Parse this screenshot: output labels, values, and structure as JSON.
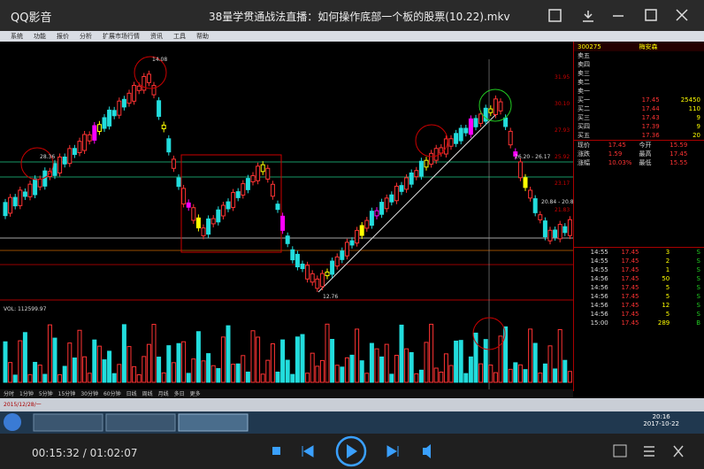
{
  "player": {
    "app": "QQ影音",
    "title": "38量学贯通战法直播：如何操作底部一个板的股票(10.22).mkv",
    "time": "00:15:32 / 01:02:07"
  },
  "software": {
    "menu": [
      "系统",
      "功能",
      "报价",
      "分析",
      "扩展市场行情",
      "资讯",
      "工具",
      "帮助"
    ],
    "tabs": [
      "分时",
      "1分钟",
      "5分钟",
      "15分钟",
      "30分钟",
      "60分钟",
      "日线",
      "周线",
      "月线",
      "多日",
      "更多"
    ],
    "chart_labels": [
      "28.36",
      "14.08",
      "12.76",
      "26.20 - 26.17",
      "20.84 - 20.80"
    ],
    "axis_labels": [
      "31.95",
      "30.10",
      "27.93",
      "25.92",
      "23.17",
      "21.83"
    ],
    "volume_label": "VOL: 112599.97",
    "date_label": "2015/12/28/一"
  },
  "quote": {
    "code": "300275",
    "name": "梅安森",
    "book": [
      [
        "卖五",
        ""
      ],
      [
        "卖四",
        ""
      ],
      [
        "卖三",
        ""
      ],
      [
        "卖二",
        ""
      ],
      [
        "卖一",
        ""
      ],
      [
        "买一",
        "17.45",
        "25450"
      ],
      [
        "买二",
        "17.44",
        "110"
      ],
      [
        "买三",
        "17.43",
        "9"
      ],
      [
        "买四",
        "17.39",
        "9"
      ],
      [
        "买五",
        "17.36",
        "20"
      ]
    ],
    "stats": [
      [
        "现价",
        "17.45",
        "今开",
        "15.59"
      ],
      [
        "涨跌",
        "1.59",
        "最高",
        "17.45"
      ],
      [
        "涨幅",
        "10.03%",
        "最低",
        "15.55"
      ]
    ],
    "ticks": [
      [
        "14:55",
        "17.45",
        "3",
        "S"
      ],
      [
        "14:55",
        "17.45",
        "2",
        "S"
      ],
      [
        "14:55",
        "17.45",
        "1",
        "S"
      ],
      [
        "14:56",
        "17.45",
        "50",
        "S"
      ],
      [
        "14:56",
        "17.45",
        "5",
        "S"
      ],
      [
        "14:56",
        "17.45",
        "5",
        "S"
      ],
      [
        "14:56",
        "17.45",
        "12",
        "S"
      ],
      [
        "14:56",
        "17.45",
        "5",
        "S"
      ],
      [
        "15:00",
        "17.45",
        "289",
        "B"
      ]
    ]
  },
  "taskbar": {
    "clock": "20:16",
    "date": "2017-10-22"
  }
}
